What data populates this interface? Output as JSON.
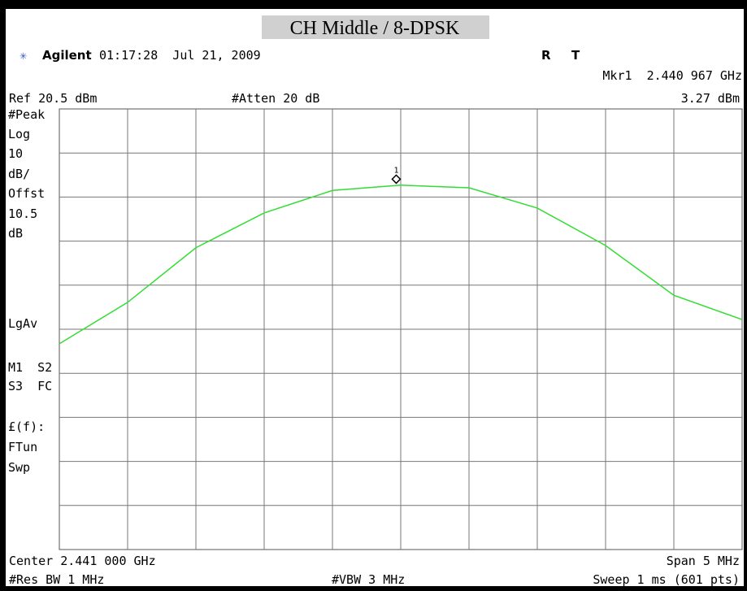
{
  "title": "CH Middle / 8-DPSK",
  "header": {
    "brand": "Agilent",
    "timestamp": "01:17:28  Jul 21, 2009",
    "flag_r": "R",
    "flag_t": "T",
    "marker_readout": "Mkr1  2.440 967 GHz",
    "ref_level": "Ref 20.5 dBm",
    "atten": "#Atten 20 dB",
    "marker_level": "3.27 dBm"
  },
  "side_panel": [
    "#Peak",
    "Log",
    "10",
    "dB/",
    "Offst",
    "10.5",
    "dB",
    "LgAv",
    "M1  S2",
    "S3  FC",
    "£(f):",
    "FTun",
    "Swp"
  ],
  "footer": {
    "center": "Center 2.441 000 GHz",
    "span": "Span 5 MHz",
    "rbw": "#Res BW 1 MHz",
    "vbw": "#VBW 3 MHz",
    "sweep": "Sweep 1 ms (601 pts)"
  },
  "trace": {
    "type": "line",
    "color": "#33dd33",
    "xlim": [
      2.4385,
      2.4435
    ],
    "ylim": [
      -79.5,
      20.5
    ],
    "x": [
      2.4385,
      2.439,
      2.4395,
      2.44,
      2.4405,
      2.441,
      2.4415,
      2.442,
      2.4425,
      2.443,
      2.4435
    ],
    "values": [
      -32.8,
      -23.4,
      -11.0,
      -3.1,
      2.0,
      3.2,
      2.6,
      -2.0,
      -10.5,
      -21.8,
      -27.3
    ]
  },
  "marker": {
    "label": "1",
    "freq": 2.440967,
    "value": 3.27
  }
}
